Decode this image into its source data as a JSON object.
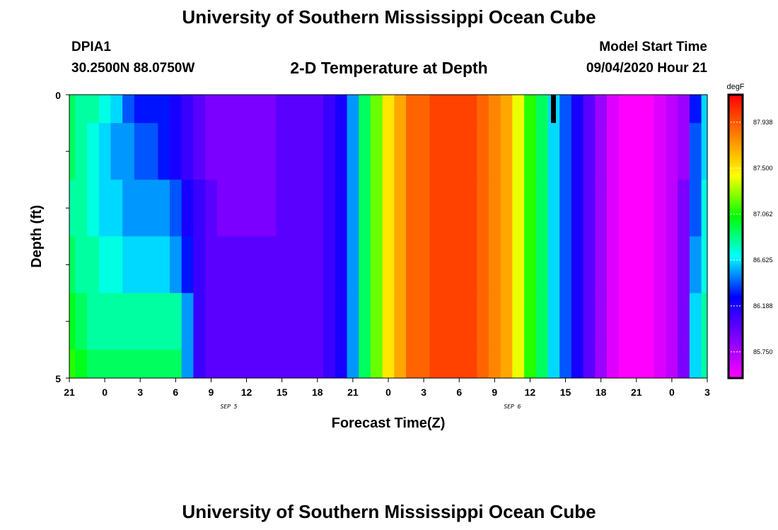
{
  "header": {
    "title": "University of Southern Mississippi Ocean Cube",
    "station": "DPIA1",
    "coords": "30.2500N 88.0750W",
    "subtitle": "2-D Temperature at Depth",
    "model_start_label": "Model Start Time",
    "model_start_value": "09/04/2020 Hour 21"
  },
  "footer": {
    "title": "University of Southern Mississippi Ocean Cube"
  },
  "chart_data": {
    "type": "heatmap",
    "title": "2-D Temperature at Depth",
    "xlabel": "Forecast Time(Z)",
    "ylabel": "Depth (ft)",
    "x_tick_labels": [
      "21",
      "0",
      "3",
      "6",
      "9",
      "12",
      "15",
      "18",
      "21",
      "0",
      "3",
      "6",
      "9",
      "12",
      "15",
      "18",
      "21",
      "0",
      "3"
    ],
    "date_labels": [
      {
        "label": "SEP 5",
        "after_tick": 4
      },
      {
        "label": "SEP 6",
        "after_tick": 12
      }
    ],
    "y_tick_labels": [
      "0",
      "5"
    ],
    "y_range": [
      0,
      5
    ],
    "colorbar": {
      "unit": "degF",
      "tick_labels": [
        "87.938",
        "87.500",
        "87.062",
        "86.625",
        "86.188",
        "85.750"
      ],
      "range": [
        85.5,
        88.2
      ],
      "colors": [
        "#ff00ff",
        "#8000ff",
        "#0000ff",
        "#00ffff",
        "#00ff00",
        "#ffff00",
        "#ff8000",
        "#ff0000"
      ]
    },
    "depth_bins": [
      "0-0.5",
      "0.5-1.5",
      "1.5-2.5",
      "2.5-3.5",
      "3.5-4.5",
      "4.5-5"
    ],
    "hours_from_start": [
      0,
      1,
      2,
      3,
      4,
      5,
      6,
      7,
      8,
      9,
      10,
      11,
      12,
      13,
      14,
      15,
      16,
      17,
      18,
      19,
      20,
      21,
      22,
      23,
      24,
      25,
      26,
      27,
      28,
      29,
      30,
      31,
      32,
      33,
      34,
      35,
      36,
      37,
      38,
      39,
      40,
      41,
      42,
      43,
      44,
      45,
      46,
      47,
      48,
      49,
      50,
      51,
      52,
      53,
      54
    ],
    "temperature_degF": [
      [
        86.9,
        86.8,
        86.8,
        86.7,
        86.6,
        86.4,
        86.3,
        86.3,
        86.3,
        86.2,
        86.1,
        86.0,
        85.9,
        85.9,
        85.9,
        85.9,
        85.9,
        85.9,
        86.0,
        86.0,
        86.0,
        86.0,
        86.1,
        86.2,
        86.5,
        86.9,
        87.2,
        87.5,
        87.7,
        87.9,
        87.9,
        88.0,
        88.0,
        88.0,
        88.0,
        87.9,
        87.8,
        87.7,
        87.4,
        87.1,
        86.9,
        86.6,
        86.4,
        86.2,
        86.0,
        85.8,
        85.6,
        85.5,
        85.5,
        85.5,
        85.6,
        85.7,
        85.8,
        86.3,
        86.6
      ],
      [
        86.9,
        86.8,
        86.7,
        86.6,
        86.5,
        86.5,
        86.4,
        86.4,
        86.3,
        86.2,
        86.1,
        86.0,
        85.9,
        85.9,
        85.9,
        85.9,
        85.9,
        85.9,
        86.0,
        86.0,
        86.0,
        86.0,
        86.1,
        86.2,
        86.5,
        86.9,
        87.2,
        87.5,
        87.7,
        87.9,
        87.9,
        88.0,
        88.0,
        88.0,
        88.0,
        87.9,
        87.8,
        87.7,
        87.4,
        87.1,
        86.9,
        86.6,
        86.4,
        86.2,
        86.0,
        85.8,
        85.6,
        85.5,
        85.5,
        85.5,
        85.6,
        85.7,
        85.8,
        86.4,
        86.6
      ],
      [
        86.8,
        86.8,
        86.7,
        86.6,
        86.6,
        86.5,
        86.5,
        86.5,
        86.5,
        86.4,
        86.2,
        86.1,
        86.0,
        85.9,
        85.9,
        85.9,
        85.9,
        85.9,
        86.0,
        86.0,
        86.0,
        86.0,
        86.1,
        86.2,
        86.5,
        86.9,
        87.2,
        87.5,
        87.7,
        87.9,
        87.9,
        88.0,
        88.0,
        88.0,
        88.0,
        87.9,
        87.8,
        87.7,
        87.4,
        87.1,
        86.9,
        86.6,
        86.4,
        86.2,
        86.0,
        85.8,
        85.6,
        85.5,
        85.5,
        85.5,
        85.6,
        85.7,
        85.9,
        86.4,
        86.7
      ],
      [
        86.9,
        86.8,
        86.8,
        86.7,
        86.7,
        86.6,
        86.6,
        86.6,
        86.6,
        86.5,
        86.3,
        86.1,
        86.0,
        86.0,
        86.0,
        86.0,
        86.0,
        86.0,
        86.0,
        86.0,
        86.0,
        86.0,
        86.1,
        86.2,
        86.5,
        86.9,
        87.2,
        87.5,
        87.7,
        87.9,
        87.9,
        88.0,
        88.0,
        88.0,
        88.0,
        87.9,
        87.8,
        87.7,
        87.4,
        87.1,
        86.9,
        86.6,
        86.4,
        86.2,
        86.0,
        85.8,
        85.6,
        85.5,
        85.5,
        85.5,
        85.6,
        85.7,
        85.9,
        86.5,
        86.7
      ],
      [
        87.0,
        86.9,
        86.8,
        86.8,
        86.8,
        86.8,
        86.8,
        86.8,
        86.8,
        86.8,
        86.5,
        86.1,
        86.0,
        86.0,
        86.0,
        86.0,
        86.0,
        86.0,
        86.0,
        86.0,
        86.0,
        86.0,
        86.1,
        86.2,
        86.5,
        86.9,
        87.2,
        87.5,
        87.7,
        87.9,
        87.9,
        88.0,
        88.0,
        88.0,
        88.0,
        87.9,
        87.8,
        87.7,
        87.4,
        87.1,
        86.9,
        86.6,
        86.4,
        86.2,
        86.0,
        85.8,
        85.6,
        85.5,
        85.5,
        85.5,
        85.6,
        85.7,
        85.9,
        86.6,
        86.8
      ],
      [
        87.1,
        87.0,
        86.9,
        86.9,
        86.9,
        86.9,
        86.9,
        86.9,
        86.9,
        86.9,
        86.5,
        86.1,
        86.0,
        86.0,
        86.0,
        86.0,
        86.0,
        86.0,
        86.0,
        86.0,
        86.0,
        86.0,
        86.1,
        86.2,
        86.5,
        86.9,
        87.2,
        87.5,
        87.7,
        87.9,
        87.9,
        88.0,
        88.0,
        88.0,
        88.0,
        87.9,
        87.8,
        87.7,
        87.4,
        87.1,
        86.9,
        86.6,
        86.4,
        86.2,
        86.0,
        85.8,
        85.6,
        85.5,
        85.5,
        85.5,
        85.6,
        85.7,
        85.9,
        86.6,
        86.8
      ]
    ]
  }
}
